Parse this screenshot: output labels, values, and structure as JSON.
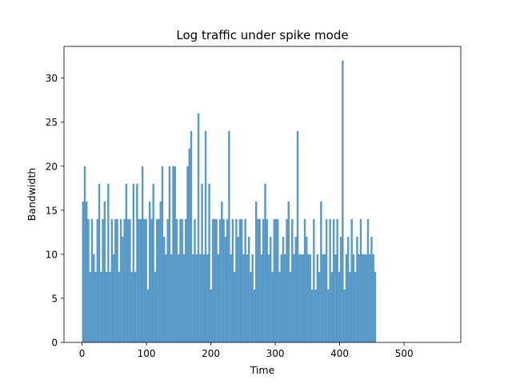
{
  "chart_data": {
    "type": "bar",
    "title": "Log traffic under spike mode",
    "xlabel": "Time",
    "ylabel": "Bandwidth",
    "xlim": [
      -28,
      588
    ],
    "ylim": [
      0,
      33.6
    ],
    "xticks": [
      0,
      100,
      200,
      300,
      400,
      500
    ],
    "yticks": [
      0,
      5,
      10,
      15,
      20,
      25,
      30
    ],
    "grid": false,
    "bin_width": 2.8,
    "color": "#5799c7",
    "values": [
      16,
      20,
      16,
      14,
      8,
      14,
      10,
      8,
      14,
      18,
      8,
      14,
      16,
      8,
      18,
      8,
      14,
      10,
      14,
      14,
      8,
      14,
      12,
      14,
      18,
      14,
      14,
      8,
      18,
      8,
      18,
      14,
      14,
      20,
      14,
      14,
      6,
      16,
      14,
      18,
      8,
      14,
      14,
      16,
      20,
      12,
      10,
      14,
      20,
      10,
      20,
      20,
      14,
      10,
      14,
      14,
      10,
      14,
      20,
      22,
      24,
      10,
      14,
      10,
      26,
      10,
      18,
      10,
      24,
      10,
      18,
      6,
      14,
      14,
      14,
      10,
      14,
      16,
      14,
      12,
      14,
      24,
      10,
      14,
      8,
      14,
      12,
      14,
      14,
      10,
      14,
      10,
      12,
      8,
      10,
      6,
      16,
      14,
      14,
      10,
      14,
      18,
      14,
      10,
      12,
      8,
      14,
      14,
      14,
      8,
      10,
      12,
      10,
      14,
      16,
      8,
      14,
      10,
      12,
      24,
      10,
      10,
      10,
      14,
      12,
      10,
      10,
      6,
      14,
      6,
      10,
      8,
      16,
      10,
      10,
      14,
      6,
      14,
      8,
      14,
      10,
      14,
      8,
      12,
      32,
      6,
      10,
      12,
      8,
      14,
      10,
      8,
      12,
      10,
      14,
      10,
      10,
      10,
      14,
      10,
      12,
      10,
      8
    ],
    "bar_color": "#5799c7"
  }
}
